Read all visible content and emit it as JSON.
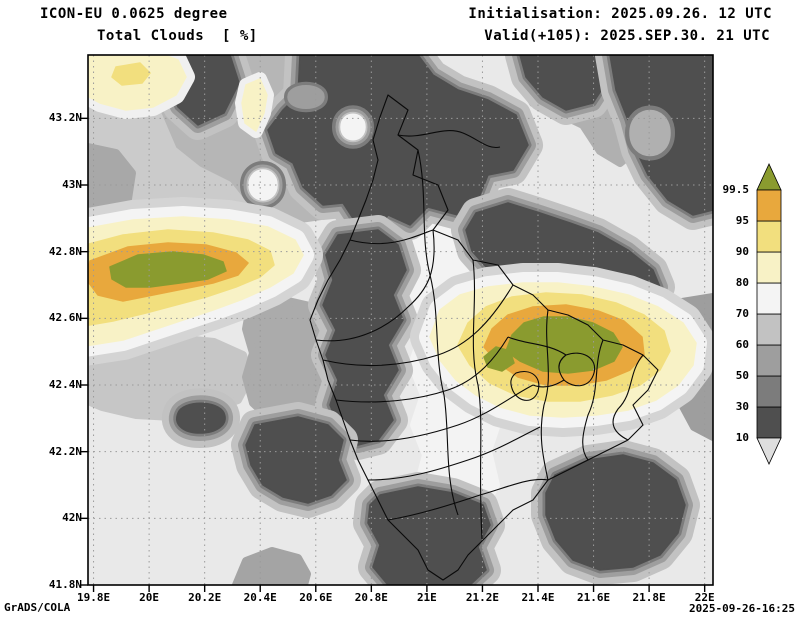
{
  "header": {
    "model_title": "ICON-EU 0.0625 degree",
    "variable_title": "Total Clouds  [ %]",
    "init_label": "Initialisation: 2025.09.26. 12 UTC",
    "valid_label": "Valid(+105): 2025.SEP.30. 21 UTC"
  },
  "footer": {
    "credit": "GrADS/COLA",
    "timestamp": "2025-09-26-16:25"
  },
  "chart_data": {
    "type": "heatmap",
    "title": "Total Clouds [ %]",
    "units": "percent total cloud cover",
    "x_axis": {
      "range": [
        19.78,
        22.03
      ],
      "ticks": [
        {
          "value": 19.8,
          "label": "19.8E"
        },
        {
          "value": 20.0,
          "label": "20E"
        },
        {
          "value": 20.2,
          "label": "20.2E"
        },
        {
          "value": 20.4,
          "label": "20.4E"
        },
        {
          "value": 20.6,
          "label": "20.6E"
        },
        {
          "value": 20.8,
          "label": "20.8E"
        },
        {
          "value": 21.0,
          "label": "21E"
        },
        {
          "value": 21.2,
          "label": "21.2E"
        },
        {
          "value": 21.4,
          "label": "21.4E"
        },
        {
          "value": 21.6,
          "label": "21.6E"
        },
        {
          "value": 21.8,
          "label": "21.8E"
        },
        {
          "value": 22.0,
          "label": "22E"
        }
      ]
    },
    "y_axis": {
      "range": [
        41.8,
        43.39
      ],
      "ticks": [
        {
          "value": 41.8,
          "label": "41.8N"
        },
        {
          "value": 42.0,
          "label": "42N"
        },
        {
          "value": 42.2,
          "label": "42.2N"
        },
        {
          "value": 42.4,
          "label": "42.4N"
        },
        {
          "value": 42.6,
          "label": "42.6N"
        },
        {
          "value": 42.8,
          "label": "42.8N"
        },
        {
          "value": 43.0,
          "label": "43N"
        },
        {
          "value": 43.2,
          "label": "43.2N"
        }
      ]
    },
    "grid": {
      "style": "dotted",
      "interval_deg": 0.2
    },
    "colorbar": {
      "levels": [
        10,
        30,
        50,
        60,
        70,
        80,
        90,
        95,
        99.5
      ],
      "labels": [
        "10",
        "30",
        "50",
        "60",
        "70",
        "80",
        "90",
        "95",
        "99.5"
      ],
      "colors_bottom_to_top": [
        "#dedede",
        "#4f4f4f",
        "#7c7c7c",
        "#9e9e9e",
        "#c2c2c2",
        "#f4f4f4",
        "#f8f2c6",
        "#f2df7e",
        "#e8a83d",
        "#8a9b2f"
      ]
    },
    "band_colors": {
      "bg": "#e9e9e9",
      "lt10": "#dedede",
      "b10_30": "#4f4f4f",
      "b30_50": "#7c7c7c",
      "b50_60": "#9e9e9e",
      "b60_70": "#c2c2c2",
      "b70_80": "#f4f4f4",
      "b80_90": "#f8f2c6",
      "b90_95": "#f2df7e",
      "b95_995": "#e8a83d",
      "gt995": "#8a9b2f"
    },
    "features": [
      {
        "name": "overcast-maximum-west",
        "approx_lon": [
          19.8,
          20.6
        ],
        "approx_lat": [
          42.55,
          42.8
        ],
        "peak": "> 99.5 %"
      },
      {
        "name": "overcast-maximum-east",
        "approx_lon": [
          21.0,
          21.9
        ],
        "approx_lat": [
          42.35,
          42.7
        ],
        "peak": "> 99.5 %"
      },
      {
        "name": "high-cloud-patch-northwest-corner",
        "approx_lon": [
          19.8,
          20.15
        ],
        "approx_lat": [
          43.2,
          43.39
        ],
        "peak": "90-95 %"
      },
      {
        "name": "low-cloud-band-north",
        "approx_lon": [
          20.55,
          21.35
        ],
        "approx_lat": [
          42.95,
          43.39
        ],
        "value": "10-30 %"
      },
      {
        "name": "low-cloud-band-northeast-corner",
        "approx_lon": [
          21.65,
          22.03
        ],
        "approx_lat": [
          43.0,
          43.39
        ],
        "value": "10-30 %"
      },
      {
        "name": "low-cloud-band-center",
        "approx_lon": [
          20.65,
          21.0
        ],
        "approx_lat": [
          42.1,
          42.75
        ],
        "value": "10-30 %"
      },
      {
        "name": "low-cloud-blob-southeast",
        "approx_lon": [
          21.45,
          21.95
        ],
        "approx_lat": [
          41.85,
          42.3
        ],
        "value": "10-30 %"
      },
      {
        "name": "low-cloud-blob-south",
        "approx_lon": [
          20.85,
          21.25
        ],
        "approx_lat": [
          41.8,
          42.1
        ],
        "value": "10-30 %"
      },
      {
        "name": "clear-background",
        "value": "< 10 %"
      }
    ],
    "overlay": "administrative boundary lines (Kosovo region municipalities)"
  }
}
